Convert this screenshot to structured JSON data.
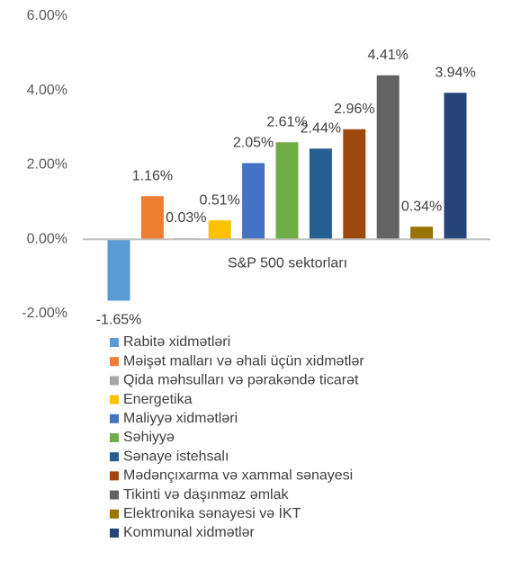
{
  "chart_data": {
    "type": "bar",
    "categories": [
      "S&P 500 sektorları"
    ],
    "series": [
      {
        "name": "Rabitə xidmətləri",
        "color": "#5b9bd5",
        "values": [
          -1.65
        ],
        "value_labels": [
          "-1.65%"
        ]
      },
      {
        "name": "Məişət malları və əhali üçün xidmətlər",
        "color": "#ed7d31",
        "values": [
          1.16
        ],
        "value_labels": [
          "1.16%"
        ]
      },
      {
        "name": "Qida məhsulları və pərakəndə ticarət",
        "color": "#a5a5a5",
        "values": [
          0.03
        ],
        "value_labels": [
          "0.03%"
        ]
      },
      {
        "name": "Energetika",
        "color": "#ffc000",
        "values": [
          0.51
        ],
        "value_labels": [
          "0.51%"
        ]
      },
      {
        "name": "Maliyyə xidmətləri",
        "color": "#4472c4",
        "values": [
          2.05
        ],
        "value_labels": [
          "2.05%"
        ]
      },
      {
        "name": "Səhiyyə",
        "color": "#70ad47",
        "values": [
          2.61
        ],
        "value_labels": [
          "2.61%"
        ]
      },
      {
        "name": "Sənaye istehsalı",
        "color": "#255e91",
        "values": [
          2.44
        ],
        "value_labels": [
          "2.44%"
        ]
      },
      {
        "name": "Mədənçıxarma və xammal sənayesi",
        "color": "#9e480e",
        "values": [
          2.96
        ],
        "value_labels": [
          "2.96%"
        ]
      },
      {
        "name": "Tikinti və daşınmaz əmlak",
        "color": "#636363",
        "values": [
          4.41
        ],
        "value_labels": [
          "4.41%"
        ]
      },
      {
        "name": "Elektronika sənayesi və İKT",
        "color": "#997300",
        "values": [
          0.34
        ],
        "value_labels": [
          "0.34%"
        ]
      },
      {
        "name": "Kommunal xidmətlər",
        "color": "#264478",
        "values": [
          3.94
        ],
        "value_labels": [
          "3.94%"
        ]
      }
    ],
    "ylim": [
      -2,
      6
    ],
    "yticks": [
      {
        "value": -2,
        "label": "-2.00%"
      },
      {
        "value": 0,
        "label": "0.00%"
      },
      {
        "value": 2,
        "label": "2.00%"
      },
      {
        "value": 4,
        "label": "4.00%"
      },
      {
        "value": 6,
        "label": "6.00%"
      }
    ],
    "grid": false,
    "legend": "bottom"
  }
}
